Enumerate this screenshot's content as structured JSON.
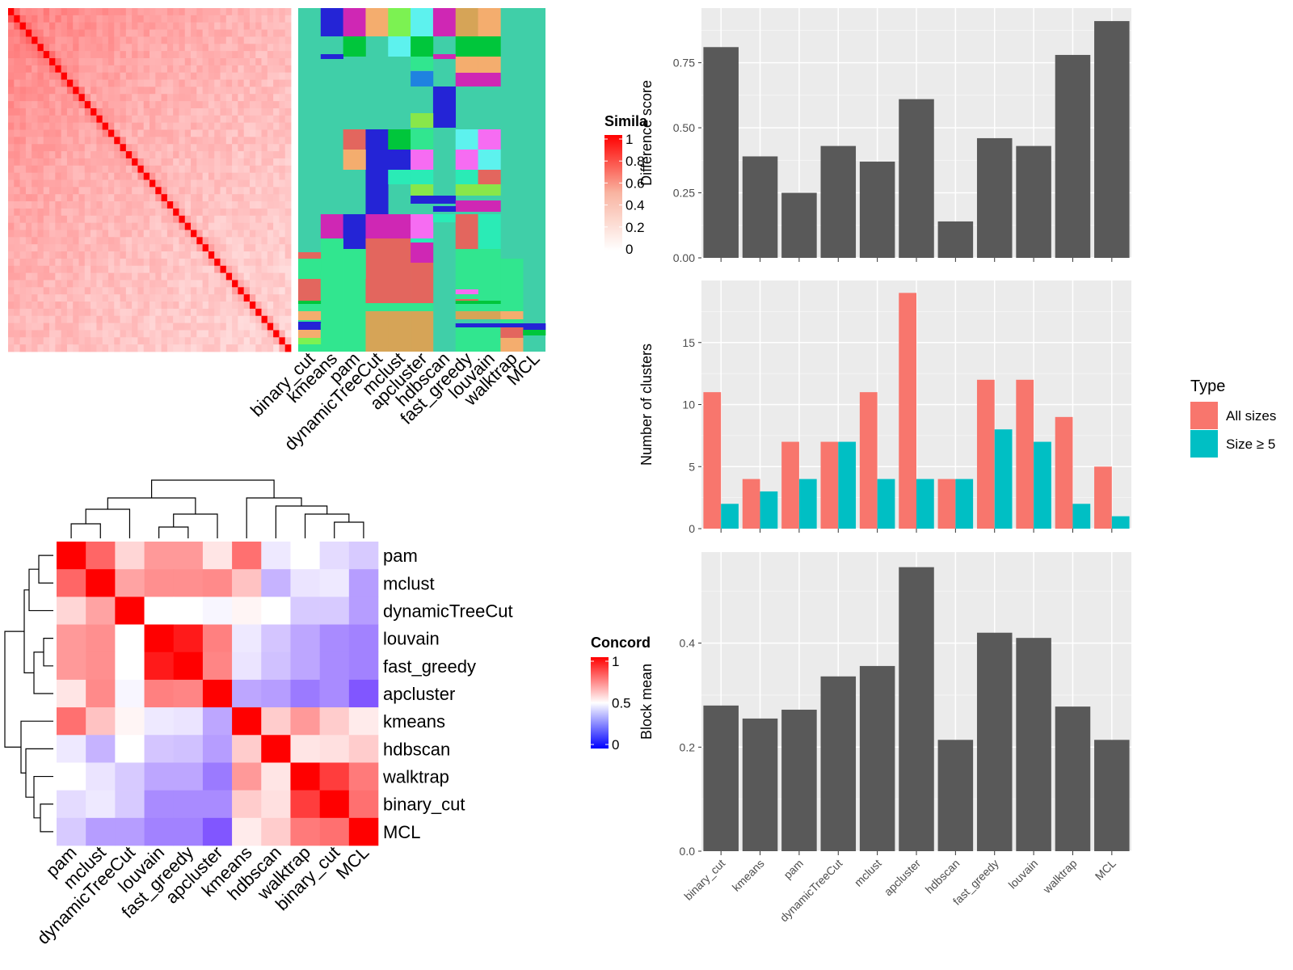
{
  "chart_data": [
    {
      "type": "heatmap",
      "id": "similarity",
      "legend_title": "Simila",
      "legend_ticks": [
        "1",
        "0.8",
        "0.6",
        "0.4",
        "0.2",
        "0"
      ],
      "n": 48
    },
    {
      "type": "heatmap",
      "id": "partitions",
      "columns": [
        "binary_cut",
        "kmeans",
        "pam",
        "dynamicTreeCut",
        "mclust",
        "apcluster",
        "hdbscan",
        "fast_greedy",
        "louvain",
        "walktrap",
        "MCL"
      ]
    },
    {
      "type": "heatmap",
      "id": "concordance",
      "legend_title": "Concord",
      "legend_ticks": [
        "1",
        "0.5",
        "0"
      ],
      "rows": [
        "pam",
        "mclust",
        "dynamicTreeCut",
        "louvain",
        "fast_greedy",
        "apcluster",
        "kmeans",
        "hdbscan",
        "walktrap",
        "binary_cut",
        "MCL"
      ],
      "columns": [
        "pam",
        "mclust",
        "dynamicTreeCut",
        "louvain",
        "fast_greedy",
        "apcluster",
        "kmeans",
        "hdbscan",
        "walktrap",
        "binary_cut",
        "MCL"
      ],
      "values": [
        [
          1.0,
          0.8,
          0.58,
          0.7,
          0.7,
          0.55,
          0.78,
          0.45,
          0.5,
          0.42,
          0.38
        ],
        [
          0.8,
          1.0,
          0.68,
          0.72,
          0.72,
          0.73,
          0.62,
          0.33,
          0.44,
          0.45,
          0.28
        ],
        [
          0.58,
          0.68,
          1.0,
          0.5,
          0.5,
          0.48,
          0.52,
          0.5,
          0.38,
          0.38,
          0.28
        ],
        [
          0.7,
          0.72,
          0.5,
          1.0,
          0.95,
          0.75,
          0.45,
          0.37,
          0.3,
          0.24,
          0.22
        ],
        [
          0.7,
          0.72,
          0.5,
          0.95,
          1.0,
          0.74,
          0.44,
          0.36,
          0.3,
          0.24,
          0.22
        ],
        [
          0.55,
          0.73,
          0.48,
          0.75,
          0.74,
          1.0,
          0.3,
          0.28,
          0.2,
          0.24,
          0.12
        ],
        [
          0.78,
          0.62,
          0.52,
          0.45,
          0.44,
          0.3,
          1.0,
          0.6,
          0.7,
          0.6,
          0.54
        ],
        [
          0.45,
          0.33,
          0.5,
          0.37,
          0.36,
          0.28,
          0.6,
          1.0,
          0.55,
          0.56,
          0.6
        ],
        [
          0.5,
          0.44,
          0.38,
          0.3,
          0.3,
          0.2,
          0.7,
          0.55,
          1.0,
          0.88,
          0.76
        ],
        [
          0.42,
          0.45,
          0.38,
          0.24,
          0.24,
          0.24,
          0.6,
          0.56,
          0.88,
          1.0,
          0.78
        ],
        [
          0.38,
          0.28,
          0.28,
          0.22,
          0.22,
          0.12,
          0.54,
          0.6,
          0.76,
          0.78,
          1.0
        ]
      ]
    },
    {
      "type": "bar",
      "id": "difference",
      "categories": [
        "binary_cut",
        "kmeans",
        "pam",
        "dynamicTreeCut",
        "mclust",
        "apcluster",
        "hdbscan",
        "fast_greedy",
        "louvain",
        "walktrap",
        "MCL"
      ],
      "values": [
        0.81,
        0.39,
        0.25,
        0.43,
        0.37,
        0.61,
        0.14,
        0.46,
        0.43,
        0.78,
        0.91
      ],
      "ylabel": "Difference score",
      "yticks": [
        "0.00",
        "0.25",
        "0.50",
        "0.75"
      ],
      "ylim": [
        0,
        0.96
      ]
    },
    {
      "type": "bar",
      "id": "clusters",
      "categories": [
        "binary_cut",
        "kmeans",
        "pam",
        "dynamicTreeCut",
        "mclust",
        "apcluster",
        "hdbscan",
        "fast_greedy",
        "louvain",
        "walktrap",
        "MCL"
      ],
      "ylabel": "Number of clusters",
      "yticks": [
        "0",
        "5",
        "10",
        "15"
      ],
      "ylim": [
        0,
        20
      ],
      "legend_title": "Type",
      "series": [
        {
          "name": "All sizes",
          "color": "#F8766D",
          "values": [
            11,
            4,
            7,
            7,
            11,
            19,
            4,
            12,
            12,
            9,
            5
          ]
        },
        {
          "name": "Size ≥ 5",
          "color": "#00BFC4",
          "values": [
            2,
            3,
            4,
            7,
            4,
            4,
            4,
            8,
            7,
            2,
            1
          ]
        }
      ]
    },
    {
      "type": "bar",
      "id": "blockmean",
      "categories": [
        "binary_cut",
        "kmeans",
        "pam",
        "dynamicTreeCut",
        "mclust",
        "apcluster",
        "hdbscan",
        "fast_greedy",
        "louvain",
        "walktrap",
        "MCL"
      ],
      "values": [
        0.28,
        0.255,
        0.272,
        0.336,
        0.356,
        0.546,
        0.214,
        0.42,
        0.41,
        0.278,
        0.214
      ],
      "ylabel": "Block mean",
      "yticks": [
        "0.0",
        "0.2",
        "0.4"
      ],
      "ylim": [
        0,
        0.575
      ]
    }
  ]
}
